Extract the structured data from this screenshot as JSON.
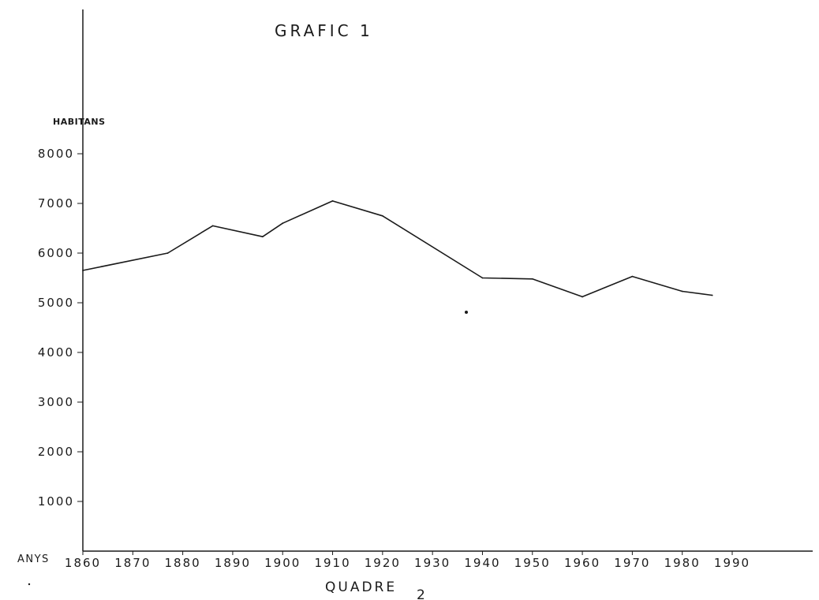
{
  "chart_data": {
    "type": "line",
    "title": "GRAFIC 1",
    "ylabel": "HABITANS",
    "xlabel": "ANYS",
    "caption": "QUADRE",
    "caption_number": "2",
    "x_ticks": [
      "1860",
      "1870",
      "1880",
      "1890",
      "1900",
      "1910",
      "1920",
      "1930",
      "1940",
      "1950",
      "1960",
      "1970",
      "1980",
      "1990"
    ],
    "y_ticks": [
      "1000",
      "2000",
      "3000",
      "4000",
      "5000",
      "6000",
      "7000",
      "8000"
    ],
    "ylim": [
      0,
      8000
    ],
    "xlim": [
      1860,
      1990
    ],
    "grid": false,
    "series": [
      {
        "x": [
          1860,
          1877,
          1886,
          1896,
          1900,
          1910,
          1920,
          1940,
          1950,
          1960,
          1970,
          1980,
          1986
        ],
        "y": [
          5650,
          6000,
          6550,
          6330,
          6600,
          7050,
          6750,
          5500,
          5480,
          5120,
          5530,
          5230,
          5150
        ]
      }
    ],
    "line_color": "#1a1a1a"
  }
}
